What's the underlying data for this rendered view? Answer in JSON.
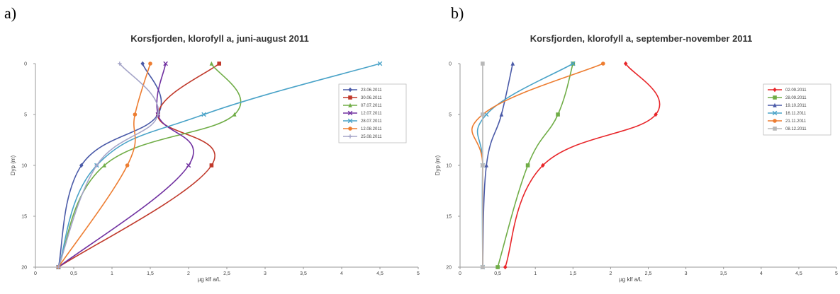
{
  "panels": [
    {
      "letter": "a)",
      "chart_data": {
        "type": "line",
        "title": "Korsfjorden, klorofyll a, juni-august 2011",
        "xlabel": "µg klf a/L",
        "ylabel": "Dyp (m)",
        "xlim": [
          0,
          5
        ],
        "ylim": [
          0,
          20
        ],
        "y_inverted": true,
        "x_ticks": [
          0,
          0.5,
          1,
          1.5,
          2,
          2.5,
          3,
          3.5,
          4,
          4.5,
          5
        ],
        "x_tick_labels": [
          "0",
          "0,5",
          "1",
          "1,5",
          "2",
          "2,5",
          "3",
          "3,5",
          "4",
          "4,5",
          "5"
        ],
        "y_ticks": [
          0,
          5,
          10,
          15,
          20
        ],
        "y_tick_labels": [
          "0",
          "5",
          "10",
          "15",
          "20"
        ],
        "grid": false,
        "legend_position": "top-right",
        "series": [
          {
            "name": "23.06.2011",
            "color": "#4a5aa8",
            "marker": "diamond",
            "depths": [
              0,
              5,
              10,
              20
            ],
            "values": [
              1.4,
              1.6,
              0.6,
              0.3
            ]
          },
          {
            "name": "30.06.2011",
            "color": "#c0392b",
            "marker": "square",
            "depths": [
              0,
              5,
              10,
              20
            ],
            "values": [
              2.4,
              1.6,
              2.3,
              0.3
            ]
          },
          {
            "name": "07.07.2011",
            "color": "#70ad47",
            "marker": "triangle",
            "depths": [
              0,
              5,
              10,
              20
            ],
            "values": [
              2.3,
              2.6,
              0.9,
              0.3
            ]
          },
          {
            "name": "12.07.2011",
            "color": "#7030a0",
            "marker": "x",
            "depths": [
              0,
              5,
              10,
              20
            ],
            "values": [
              1.7,
              1.6,
              2.0,
              0.3
            ]
          },
          {
            "name": "28.07.2011",
            "color": "#4aa3c8",
            "marker": "x",
            "depths": [
              0,
              5,
              10,
              20
            ],
            "values": [
              4.5,
              2.2,
              0.8,
              0.3
            ]
          },
          {
            "name": "12.08.2011",
            "color": "#ed7d31",
            "marker": "circle",
            "depths": [
              0,
              5,
              10,
              20
            ],
            "values": [
              1.5,
              1.3,
              1.2,
              0.3
            ]
          },
          {
            "name": "25.08.2011",
            "color": "#a5a5c8",
            "marker": "plus",
            "depths": [
              0,
              5,
              10,
              20
            ],
            "values": [
              1.1,
              1.6,
              0.8,
              0.3
            ]
          }
        ]
      }
    },
    {
      "letter": "b)",
      "chart_data": {
        "type": "line",
        "title": "Korsfjorden, klorofyll a, september-november 2011",
        "xlabel": "µg klf a/L",
        "ylabel": "Dyp (m)",
        "xlim": [
          0,
          5
        ],
        "ylim": [
          0,
          20
        ],
        "y_inverted": true,
        "x_ticks": [
          0,
          0.5,
          1,
          1.5,
          2,
          2.5,
          3,
          3.5,
          4,
          4.5,
          5
        ],
        "x_tick_labels": [
          "0",
          "0,5",
          "1",
          "1,5",
          "2",
          "2,5",
          "3",
          "3,5",
          "4",
          "4,5",
          "5"
        ],
        "y_ticks": [
          0,
          5,
          10,
          15,
          20
        ],
        "y_tick_labels": [
          "0",
          "5",
          "10",
          "15",
          "20"
        ],
        "grid": false,
        "legend_position": "top-right",
        "series": [
          {
            "name": "02.09.2011",
            "color": "#e8262a",
            "marker": "diamond",
            "depths": [
              0,
              5,
              10,
              20
            ],
            "values": [
              2.2,
              2.6,
              1.1,
              0.6
            ]
          },
          {
            "name": "28.09.2011",
            "color": "#70ad47",
            "marker": "square",
            "depths": [
              0,
              5,
              10,
              20
            ],
            "values": [
              1.5,
              1.3,
              0.9,
              0.5
            ]
          },
          {
            "name": "19.10.2011",
            "color": "#4a5aa8",
            "marker": "triangle",
            "depths": [
              0,
              5,
              10,
              20
            ],
            "values": [
              0.7,
              0.55,
              0.35,
              0.3
            ]
          },
          {
            "name": "16.11.2011",
            "color": "#4aa3c8",
            "marker": "x",
            "depths": [
              0,
              5,
              10,
              20
            ],
            "values": [
              1.5,
              0.35,
              0.3,
              0.3
            ]
          },
          {
            "name": "21.11.2011",
            "color": "#ed7d31",
            "marker": "circle",
            "depths": [
              0,
              5,
              10,
              20
            ],
            "values": [
              1.9,
              0.3,
              0.3,
              0.3
            ]
          },
          {
            "name": "08.12.2011",
            "color": "#b8b8b8",
            "marker": "square",
            "depths": [
              0,
              5,
              10,
              20
            ],
            "values": [
              0.3,
              0.3,
              0.3,
              0.3
            ]
          }
        ]
      }
    }
  ]
}
